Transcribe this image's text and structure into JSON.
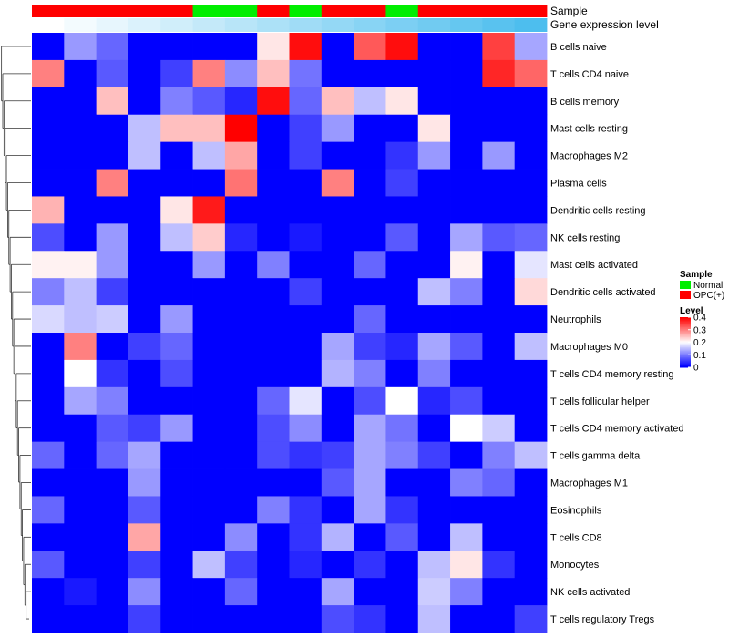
{
  "chart_data": {
    "type": "heatmap",
    "annotation_titles": {
      "sample": "Sample",
      "expression": "Gene expression level"
    },
    "sample_legend": {
      "title": "Sample",
      "entries": [
        {
          "label": "Normal",
          "color": "#00ee00"
        },
        {
          "label": "OPC(+)",
          "color": "#ff0000"
        }
      ]
    },
    "level_legend": {
      "title": "Level",
      "ticks": [
        "0.4",
        "0.3",
        "0.2",
        "0.1",
        "0"
      ],
      "tick_values": [
        0.4,
        0.3,
        0.2,
        0.1,
        0
      ],
      "vmin": 0,
      "vmax": 0.4
    },
    "colors": {
      "low": "#0000ff",
      "mid": "#ffffff",
      "high": "#ff0000"
    },
    "column_sample": [
      "OPC(+)",
      "OPC(+)",
      "OPC(+)",
      "OPC(+)",
      "OPC(+)",
      "Normal",
      "Normal",
      "OPC(+)",
      "Normal",
      "OPC(+)",
      "OPC(+)",
      "Normal",
      "OPC(+)",
      "OPC(+)",
      "OPC(+)",
      "OPC(+)"
    ],
    "column_expression_level": [
      0.02,
      0.04,
      0.06,
      0.08,
      0.1,
      0.12,
      0.14,
      0.16,
      0.18,
      0.2,
      0.22,
      0.24,
      0.26,
      0.28,
      0.3,
      0.32
    ],
    "rows": [
      "B cells naive",
      "T cells CD4 naive",
      "B cells memory",
      "Mast cells resting",
      "Macrophages M2",
      "Plasma cells",
      "Dendritic cells resting",
      "NK cells resting",
      "Mast cells activated",
      "Dendritic cells activated",
      "Neutrophils",
      "Macrophages M0",
      "T cells CD4 memory resting",
      "T cells follicular helper",
      "T cells CD4 memory activated",
      "T cells gamma delta",
      "Macrophages M1",
      "Eosinophils",
      "T cells CD8",
      "Monocytes",
      "NK cells activated",
      "T cells regulatory  Tregs"
    ],
    "values": [
      [
        0.0,
        0.12,
        0.08,
        0.0,
        0.0,
        0.0,
        0.0,
        0.22,
        0.39,
        0.0,
        0.33,
        0.39,
        0.0,
        0.0,
        0.35,
        0.13
      ],
      [
        0.3,
        0.0,
        0.07,
        0.0,
        0.05,
        0.3,
        0.11,
        0.25,
        0.09,
        0.0,
        0.0,
        0.0,
        0.0,
        0.0,
        0.37,
        0.32
      ],
      [
        0.0,
        0.0,
        0.25,
        0.0,
        0.1,
        0.07,
        0.03,
        0.39,
        0.08,
        0.25,
        0.15,
        0.22,
        0.0,
        0.0,
        0.0,
        0.0
      ],
      [
        0.0,
        0.0,
        0.0,
        0.15,
        0.25,
        0.25,
        0.4,
        0.0,
        0.05,
        0.12,
        0.0,
        0.0,
        0.22,
        0.0,
        0.0,
        0.0
      ],
      [
        0.0,
        0.0,
        0.0,
        0.15,
        0.0,
        0.15,
        0.27,
        0.0,
        0.05,
        0.0,
        0.0,
        0.04,
        0.12,
        0.0,
        0.12,
        0.0
      ],
      [
        0.0,
        0.0,
        0.3,
        0.0,
        0.0,
        0.0,
        0.31,
        0.0,
        0.0,
        0.3,
        0.0,
        0.05,
        0.0,
        0.0,
        0.0,
        0.0
      ],
      [
        0.26,
        0.0,
        0.0,
        0.0,
        0.22,
        0.38,
        0.0,
        0.0,
        0.0,
        0.0,
        0.0,
        0.0,
        0.0,
        0.0,
        0.0,
        0.0
      ],
      [
        0.06,
        0.0,
        0.12,
        0.0,
        0.15,
        0.24,
        0.03,
        0.0,
        0.02,
        0.0,
        0.0,
        0.07,
        0.0,
        0.13,
        0.07,
        0.08
      ],
      [
        0.21,
        0.21,
        0.12,
        0.0,
        0.0,
        0.12,
        0.0,
        0.1,
        0.0,
        0.0,
        0.08,
        0.0,
        0.0,
        0.21,
        0.0,
        0.18
      ],
      [
        0.1,
        0.15,
        0.05,
        0.0,
        0.0,
        0.0,
        0.0,
        0.0,
        0.05,
        0.0,
        0.0,
        0.0,
        0.15,
        0.1,
        0.0,
        0.23
      ],
      [
        0.17,
        0.15,
        0.16,
        0.0,
        0.12,
        0.0,
        0.0,
        0.0,
        0.0,
        0.0,
        0.08,
        0.0,
        0.0,
        0.0,
        0.0,
        0.0
      ],
      [
        0.0,
        0.3,
        0.0,
        0.05,
        0.08,
        0.0,
        0.0,
        0.0,
        0.0,
        0.13,
        0.05,
        0.03,
        0.13,
        0.07,
        0.0,
        0.15
      ],
      [
        0.0,
        0.2,
        0.04,
        0.0,
        0.06,
        0.0,
        0.0,
        0.0,
        0.0,
        0.14,
        0.1,
        0.0,
        0.1,
        0.0,
        0.0,
        0.0
      ],
      [
        0.0,
        0.13,
        0.1,
        0.0,
        0.0,
        0.0,
        0.0,
        0.08,
        0.18,
        0.0,
        0.06,
        0.2,
        0.03,
        0.06,
        0.0,
        0.0
      ],
      [
        0.0,
        0.0,
        0.07,
        0.05,
        0.12,
        0.0,
        0.0,
        0.06,
        0.11,
        0.0,
        0.13,
        0.09,
        0.0,
        0.2,
        0.16,
        0.0
      ],
      [
        0.08,
        0.0,
        0.08,
        0.13,
        0.0,
        0.0,
        0.0,
        0.06,
        0.04,
        0.05,
        0.13,
        0.1,
        0.05,
        0.0,
        0.1,
        0.15
      ],
      [
        0.0,
        0.0,
        0.0,
        0.12,
        0.0,
        0.0,
        0.0,
        0.0,
        0.0,
        0.07,
        0.13,
        0.0,
        0.0,
        0.1,
        0.08,
        0.0
      ],
      [
        0.08,
        0.0,
        0.0,
        0.07,
        0.0,
        0.0,
        0.0,
        0.1,
        0.04,
        0.0,
        0.13,
        0.04,
        0.0,
        0.0,
        0.0,
        0.0
      ],
      [
        0.0,
        0.0,
        0.0,
        0.27,
        0.0,
        0.0,
        0.11,
        0.0,
        0.04,
        0.14,
        0.0,
        0.07,
        0.0,
        0.15,
        0.0,
        0.0
      ],
      [
        0.07,
        0.0,
        0.0,
        0.05,
        0.0,
        0.15,
        0.05,
        0.0,
        0.03,
        0.0,
        0.04,
        0.0,
        0.15,
        0.22,
        0.04,
        0.0
      ],
      [
        0.0,
        0.02,
        0.0,
        0.11,
        0.0,
        0.0,
        0.08,
        0.0,
        0.0,
        0.13,
        0.0,
        0.0,
        0.16,
        0.1,
        0.0,
        0.0
      ],
      [
        0.0,
        0.0,
        0.0,
        0.05,
        0.0,
        0.0,
        0.0,
        0.0,
        0.0,
        0.06,
        0.04,
        0.0,
        0.15,
        0.0,
        0.0,
        0.05
      ]
    ]
  }
}
